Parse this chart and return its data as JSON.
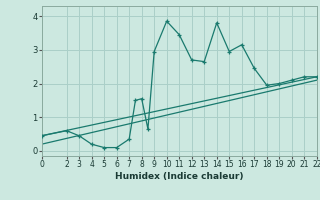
{
  "xlabel": "Humidex (Indice chaleur)",
  "bg_color": "#cce8e0",
  "grid_color": "#aacfc8",
  "line_color": "#1a7a6e",
  "xlim": [
    0,
    22
  ],
  "ylim": [
    -0.15,
    4.3
  ],
  "xticks": [
    0,
    2,
    3,
    4,
    5,
    6,
    7,
    8,
    9,
    10,
    11,
    12,
    13,
    14,
    15,
    16,
    17,
    18,
    19,
    20,
    21,
    22
  ],
  "yticks": [
    0,
    1,
    2,
    3,
    4
  ],
  "curve_x": [
    0,
    2,
    3,
    4,
    5,
    6,
    7,
    7.5,
    8,
    8.5,
    9,
    10,
    11,
    12,
    13,
    14,
    15,
    16,
    17,
    18,
    19,
    20,
    21,
    22
  ],
  "curve_y": [
    0.45,
    0.6,
    0.45,
    0.2,
    0.1,
    0.1,
    0.35,
    1.5,
    1.55,
    0.65,
    2.95,
    3.85,
    3.45,
    2.7,
    2.65,
    3.8,
    2.95,
    3.15,
    2.45,
    1.95,
    2.0,
    2.1,
    2.2,
    2.2
  ],
  "line1_x": [
    0,
    22
  ],
  "line1_y": [
    0.45,
    2.2
  ],
  "line2_x": [
    0,
    22
  ],
  "line2_y": [
    0.2,
    2.1
  ]
}
